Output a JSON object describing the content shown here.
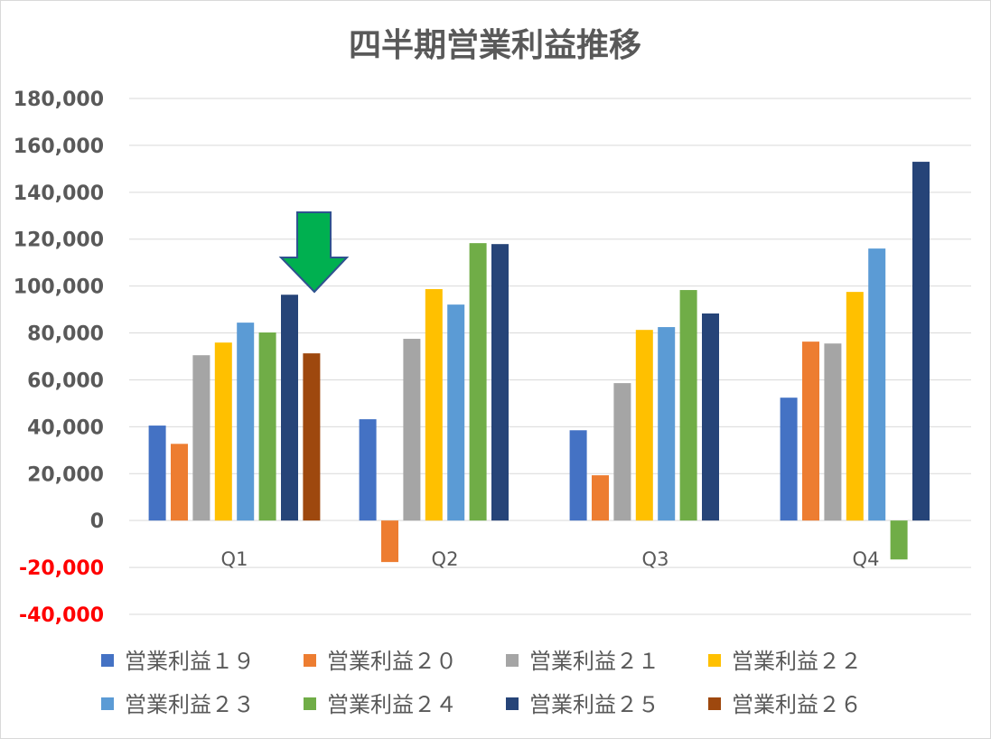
{
  "chart_data": {
    "type": "bar",
    "title": "四半期営業利益推移",
    "xlabel": "",
    "ylabel": "",
    "ylim": [
      -40000,
      180000
    ],
    "ytick_step": 20000,
    "yticks": [
      "180,000",
      "160,000",
      "140,000",
      "120,000",
      "100,000",
      "80,000",
      "60,000",
      "40,000",
      "20,000",
      "0",
      "-20,000",
      "-40,000"
    ],
    "grid": true,
    "legend_position": "bottom",
    "categories": [
      "Q1",
      "Q2",
      "Q3",
      "Q4"
    ],
    "series": [
      {
        "name": "営業利益１９",
        "color": "#4472c4",
        "values": [
          40500,
          43200,
          38500,
          52400
        ]
      },
      {
        "name": "営業利益２０",
        "color": "#ed7d31",
        "values": [
          32700,
          -17700,
          19300,
          76300
        ]
      },
      {
        "name": "営業利益２１",
        "color": "#a5a5a5",
        "values": [
          70500,
          77500,
          58600,
          75500
        ]
      },
      {
        "name": "営業利益２２",
        "color": "#ffc000",
        "values": [
          75900,
          98700,
          81300,
          97500
        ]
      },
      {
        "name": "営業利益２３",
        "color": "#5b9bd5",
        "values": [
          84400,
          92100,
          82500,
          116000
        ]
      },
      {
        "name": "営業利益２４",
        "color": "#70ad47",
        "values": [
          80200,
          118300,
          98300,
          -16600
        ]
      },
      {
        "name": "営業利益２５",
        "color": "#264478",
        "values": [
          96300,
          117900,
          88300,
          153000
        ]
      },
      {
        "name": "営業利益２６",
        "color": "#9e480e",
        "values": [
          71300,
          null,
          null,
          null
        ]
      }
    ],
    "negative_tick_color": "#ff0000",
    "annotation": {
      "type": "down-arrow",
      "color": "#00b050",
      "points_to": "Q1 営業利益２５"
    }
  }
}
